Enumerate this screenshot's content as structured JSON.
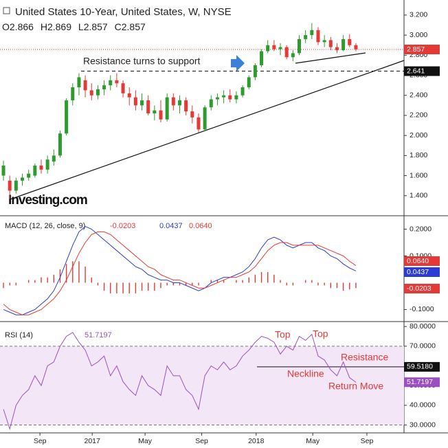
{
  "header": {
    "title": "United States 10-Year, United States, W, NYSE",
    "ohlc": [
      {
        "label": "O",
        "value": 2.866
      },
      {
        "label": "H",
        "value": 2.869
      },
      {
        "label": "L",
        "value": 2.857
      },
      {
        "label": "C",
        "value": 2.857
      }
    ]
  },
  "watermark": "Investing.com",
  "chart_data": [
    {
      "type": "candlestick",
      "name": "price",
      "xlim": [
        -1.1,
        127.3
      ],
      "xticks": [
        {
          "value": 11.6,
          "label": "Sep"
        },
        {
          "value": 28.2,
          "label": "2017"
        },
        {
          "value": 45,
          "label": "May"
        },
        {
          "value": 63,
          "label": "Sep"
        },
        {
          "value": 80.3,
          "label": "2018"
        },
        {
          "value": 98.3,
          "label": "May"
        },
        {
          "value": 115.5,
          "label": "Sep"
        }
      ],
      "ylim": [
        1.2,
        3.35
      ],
      "yticks": [
        {
          "value": 1.4,
          "label": "1.400"
        },
        {
          "value": 1.6,
          "label": "1.600"
        },
        {
          "value": 1.8,
          "label": "1.800"
        },
        {
          "value": 2.0,
          "label": "2.000"
        },
        {
          "value": 2.2,
          "label": "2.200"
        },
        {
          "value": 2.4,
          "label": "2.400"
        },
        {
          "value": 2.6,
          "label": "2.600"
        },
        {
          "value": 2.8,
          "label": "2.800"
        },
        {
          "value": 3.0,
          "label": "3.000"
        },
        {
          "value": 3.2,
          "label": "3.200"
        }
      ],
      "up_color": "#2e9b2e",
      "down_color": "#e53935",
      "x": [
        0,
        2,
        4,
        6,
        8,
        10,
        12,
        14,
        16,
        18,
        20,
        22,
        24,
        26,
        28,
        30,
        32,
        34,
        36,
        38,
        40,
        42,
        44,
        46,
        48,
        50,
        52,
        54,
        56,
        58,
        60,
        62,
        64,
        66,
        68,
        70,
        72,
        74,
        76,
        78,
        80,
        82,
        84,
        86,
        88,
        90,
        92,
        94,
        96,
        98,
        100,
        102,
        104,
        106,
        108,
        110,
        112
      ],
      "open": [
        1.6,
        1.55,
        1.45,
        1.55,
        1.58,
        1.6,
        1.7,
        1.66,
        1.74,
        1.8,
        2.02,
        2.35,
        2.48,
        2.55,
        2.45,
        2.4,
        2.46,
        2.5,
        2.55,
        2.52,
        2.42,
        2.38,
        2.3,
        2.35,
        2.22,
        2.25,
        2.16,
        2.38,
        2.3,
        2.35,
        2.24,
        2.18,
        2.06,
        2.28,
        2.36,
        2.38,
        2.4,
        2.36,
        2.4,
        2.48,
        2.58,
        2.7,
        2.84,
        2.9,
        2.86,
        2.88,
        2.78,
        2.82,
        2.96,
        3.0,
        3.05,
        2.93,
        2.95,
        2.88,
        2.85,
        2.96,
        2.9
      ],
      "high": [
        1.75,
        1.6,
        1.58,
        1.62,
        1.66,
        1.72,
        1.76,
        1.8,
        1.86,
        2.05,
        2.37,
        2.52,
        2.62,
        2.6,
        2.52,
        2.5,
        2.55,
        2.6,
        2.62,
        2.55,
        2.48,
        2.45,
        2.42,
        2.4,
        2.3,
        2.35,
        2.42,
        2.42,
        2.4,
        2.38,
        2.3,
        2.22,
        2.3,
        2.4,
        2.42,
        2.45,
        2.46,
        2.44,
        2.5,
        2.6,
        2.72,
        2.86,
        2.95,
        2.95,
        2.92,
        2.9,
        2.85,
        3.0,
        3.05,
        3.12,
        3.08,
        3.0,
        2.98,
        2.92,
        3.0,
        3.01,
        2.92
      ],
      "low": [
        1.55,
        1.37,
        1.42,
        1.5,
        1.55,
        1.58,
        1.62,
        1.62,
        1.7,
        1.78,
        2.0,
        2.3,
        2.4,
        2.38,
        2.35,
        2.36,
        2.4,
        2.45,
        2.48,
        2.38,
        2.3,
        2.25,
        2.25,
        2.2,
        2.15,
        2.13,
        2.14,
        2.25,
        2.22,
        2.2,
        2.12,
        2.03,
        2.04,
        2.25,
        2.3,
        2.32,
        2.33,
        2.32,
        2.38,
        2.46,
        2.55,
        2.68,
        2.82,
        2.84,
        2.8,
        2.76,
        2.74,
        2.8,
        2.92,
        2.96,
        2.9,
        2.88,
        2.85,
        2.82,
        2.84,
        2.88,
        2.84
      ],
      "close": [
        1.7,
        1.45,
        1.55,
        1.58,
        1.62,
        1.7,
        1.66,
        1.76,
        1.8,
        2.02,
        2.35,
        2.48,
        2.58,
        2.45,
        2.4,
        2.46,
        2.5,
        2.55,
        2.52,
        2.42,
        2.38,
        2.3,
        2.35,
        2.22,
        2.25,
        2.16,
        2.38,
        2.3,
        2.35,
        2.24,
        2.18,
        2.06,
        2.28,
        2.36,
        2.38,
        2.4,
        2.36,
        2.4,
        2.48,
        2.58,
        2.7,
        2.84,
        2.9,
        2.86,
        2.88,
        2.78,
        2.82,
        2.96,
        3.0,
        3.05,
        2.93,
        2.95,
        2.88,
        2.85,
        2.96,
        2.9,
        2.86
      ],
      "last": {
        "value": 2.857,
        "color": "#e53935"
      },
      "support": {
        "value": 2.641
      },
      "annotations": [
        "Resistance turns to support"
      ]
    },
    {
      "type": "macd",
      "title": "MACD (12, 26, close, 9)",
      "ylim": [
        -0.145,
        0.25
      ],
      "yticks": [
        {
          "value": -0.1,
          "label": "-0.1000"
        },
        {
          "value": 0.1,
          "label": "0.1000"
        },
        {
          "value": 0.2,
          "label": "0.2000"
        }
      ],
      "series": [
        {
          "name": "histogram",
          "color": "#e53935",
          "last": -0.0203,
          "last_label": "-0.0203",
          "values": [
            -0.02,
            -0.01,
            -0.01,
            0,
            0.01,
            0.01,
            0.02,
            0.02,
            0.03,
            0.05,
            0.07,
            0.08,
            0.08,
            0.06,
            0.02,
            -0.01,
            -0.03,
            -0.04,
            -0.04,
            -0.04,
            -0.04,
            -0.04,
            -0.03,
            -0.03,
            -0.03,
            -0.02,
            -0.01,
            -0.01,
            -0.01,
            -0.01,
            -0.01,
            -0.01,
            0,
            0.01,
            0.01,
            0.01,
            0,
            0.01,
            0.01,
            0.02,
            0.03,
            0.04,
            0.04,
            0.03,
            0.01,
            -0.01,
            -0.01,
            0,
            0.01,
            0.01,
            -0.01,
            -0.01,
            -0.02,
            -0.02,
            -0.03,
            -0.025,
            -0.0203
          ]
        },
        {
          "name": "macd",
          "color": "#2a3bd6",
          "last": 0.0437,
          "last_label": "0.0437",
          "values": [
            -0.1,
            -0.11,
            -0.12,
            -0.12,
            -0.11,
            -0.1,
            -0.08,
            -0.06,
            -0.03,
            0.02,
            0.08,
            0.14,
            0.19,
            0.21,
            0.2,
            0.18,
            0.16,
            0.14,
            0.12,
            0.1,
            0.08,
            0.06,
            0.05,
            0.03,
            0.02,
            0.01,
            0.01,
            0.0,
            0.0,
            -0.01,
            -0.02,
            -0.03,
            -0.02,
            0.0,
            0.01,
            0.02,
            0.02,
            0.03,
            0.04,
            0.06,
            0.09,
            0.13,
            0.16,
            0.17,
            0.16,
            0.14,
            0.13,
            0.14,
            0.15,
            0.15,
            0.13,
            0.12,
            0.1,
            0.09,
            0.07,
            0.055,
            0.044
          ]
        },
        {
          "name": "signal",
          "color": "#e53935",
          "last": 0.064,
          "last_label": "0.0640",
          "values": [
            -0.08,
            -0.1,
            -0.11,
            -0.12,
            -0.12,
            -0.11,
            -0.1,
            -0.08,
            -0.06,
            -0.03,
            0.01,
            0.06,
            0.11,
            0.15,
            0.18,
            0.19,
            0.19,
            0.18,
            0.16,
            0.14,
            0.12,
            0.1,
            0.08,
            0.06,
            0.05,
            0.03,
            0.02,
            0.01,
            0.01,
            0.0,
            -0.01,
            -0.02,
            -0.02,
            -0.01,
            0.0,
            0.01,
            0.02,
            0.02,
            0.03,
            0.04,
            0.06,
            0.09,
            0.12,
            0.14,
            0.15,
            0.15,
            0.14,
            0.14,
            0.14,
            0.14,
            0.14,
            0.13,
            0.12,
            0.11,
            0.1,
            0.08,
            0.064
          ]
        }
      ]
    },
    {
      "type": "rsi",
      "title": "RSI (14)",
      "ylim": [
        26,
        82.5
      ],
      "yticks": [
        {
          "value": 30,
          "label": "30.0000"
        },
        {
          "value": 40,
          "label": "40.0000"
        },
        {
          "value": 50,
          "label": "50.0000"
        },
        {
          "value": 60,
          "label": "60.0000"
        },
        {
          "value": 70,
          "label": "70.0000"
        },
        {
          "value": 80,
          "label": "80.0000"
        }
      ],
      "bands": [
        30,
        70
      ],
      "color": "#9c4fc4",
      "last": 51.7197,
      "neckline": {
        "value": 59.518,
        "label": "59.5180"
      },
      "annotations": [
        "Top",
        "Top",
        "Neckline",
        "Resistance",
        "Return Move"
      ],
      "values": [
        38,
        28,
        40,
        45,
        48,
        55,
        50,
        60,
        62,
        70,
        75,
        77,
        72,
        68,
        60,
        62,
        65,
        55,
        60,
        52,
        48,
        45,
        55,
        50,
        48,
        45,
        60,
        55,
        55,
        48,
        45,
        38,
        55,
        60,
        58,
        62,
        58,
        60,
        65,
        68,
        72,
        75,
        74,
        72,
        66,
        70,
        68,
        75,
        73,
        76,
        65,
        63,
        58,
        55,
        62,
        54,
        51.7197
      ]
    }
  ]
}
